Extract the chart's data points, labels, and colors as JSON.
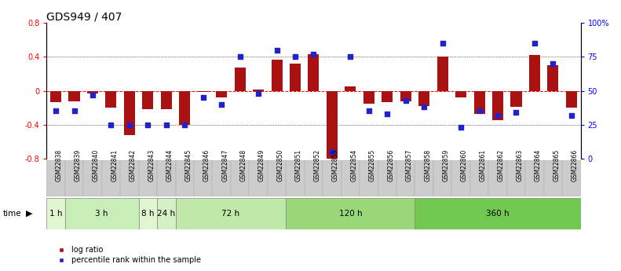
{
  "title": "GDS949 / 407",
  "samples": [
    "GSM22838",
    "GSM22839",
    "GSM22840",
    "GSM22841",
    "GSM22842",
    "GSM22843",
    "GSM22844",
    "GSM22845",
    "GSM22846",
    "GSM22847",
    "GSM22848",
    "GSM22849",
    "GSM22850",
    "GSM22851",
    "GSM22852",
    "GSM22853",
    "GSM22854",
    "GSM22855",
    "GSM22856",
    "GSM22857",
    "GSM22858",
    "GSM22859",
    "GSM22860",
    "GSM22861",
    "GSM22862",
    "GSM22863",
    "GSM22864",
    "GSM22865",
    "GSM22866"
  ],
  "log_ratio": [
    -0.13,
    -0.12,
    -0.03,
    -0.2,
    -0.52,
    -0.22,
    -0.22,
    -0.4,
    -0.01,
    -0.08,
    0.27,
    0.01,
    0.37,
    0.32,
    0.43,
    -0.8,
    0.05,
    -0.15,
    -0.13,
    -0.12,
    -0.18,
    0.4,
    -0.08,
    -0.27,
    -0.35,
    -0.19,
    0.42,
    0.3,
    -0.2
  ],
  "percentile": [
    35,
    35,
    47,
    25,
    25,
    25,
    25,
    25,
    45,
    40,
    75,
    48,
    80,
    75,
    77,
    5,
    75,
    35,
    33,
    43,
    38,
    85,
    23,
    35,
    32,
    34,
    85,
    70,
    32
  ],
  "time_groups": [
    {
      "label": "1 h",
      "start": 0,
      "end": 1,
      "color": "#e0f5d0"
    },
    {
      "label": "3 h",
      "start": 1,
      "end": 5,
      "color": "#c8edb8"
    },
    {
      "label": "8 h",
      "start": 5,
      "end": 6,
      "color": "#e0f5d0"
    },
    {
      "label": "24 h",
      "start": 6,
      "end": 7,
      "color": "#d4f0c4"
    },
    {
      "label": "72 h",
      "start": 7,
      "end": 13,
      "color": "#c0e8a8"
    },
    {
      "label": "120 h",
      "start": 13,
      "end": 20,
      "color": "#98d878"
    },
    {
      "label": "360 h",
      "start": 20,
      "end": 29,
      "color": "#70c850"
    }
  ],
  "ylim": [
    -0.8,
    0.8
  ],
  "yticks_left": [
    -0.8,
    -0.4,
    0.0,
    0.4,
    0.8
  ],
  "yticks_right": [
    0,
    25,
    50,
    75,
    100
  ],
  "bar_color": "#aa1111",
  "dot_color": "#2222cc",
  "background_color": "#ffffff",
  "title_fontsize": 10,
  "tick_fontsize": 7,
  "sample_fontsize": 5.5
}
